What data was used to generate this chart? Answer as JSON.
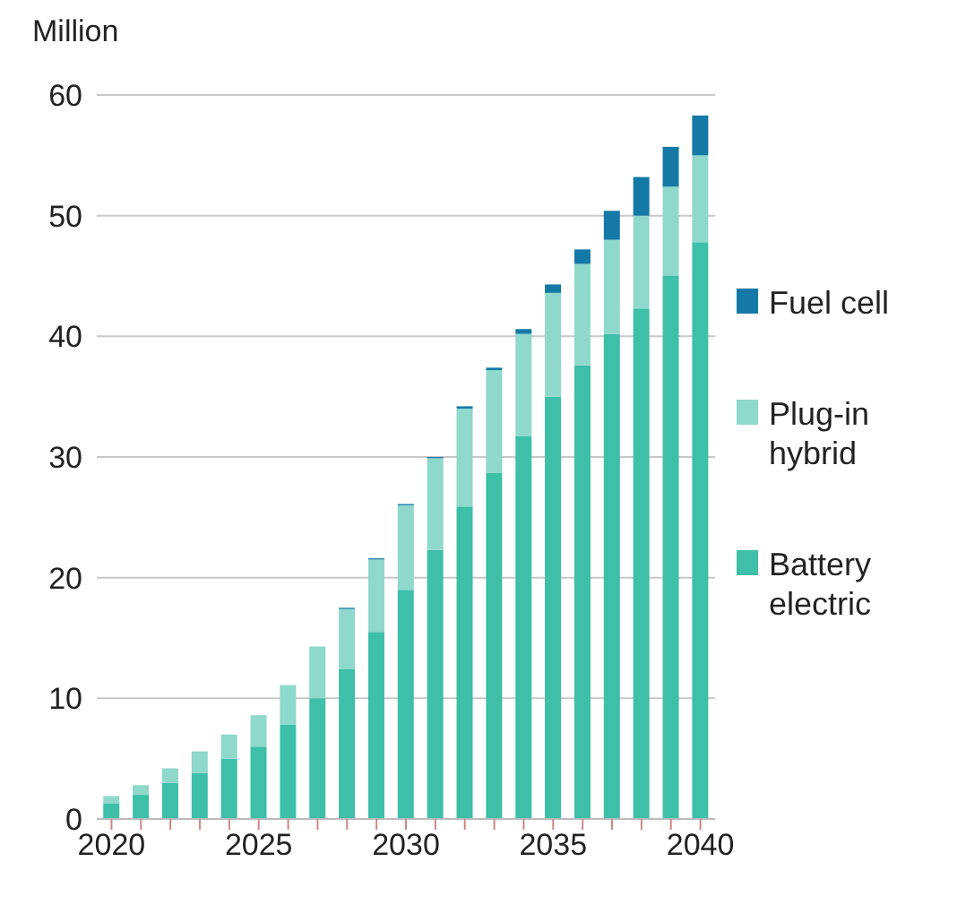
{
  "chart_data": {
    "type": "bar",
    "stacked": true,
    "ylabel": "Million",
    "categories": [
      "2020",
      null,
      null,
      null,
      null,
      "2025",
      null,
      null,
      null,
      null,
      "2030",
      null,
      null,
      null,
      null,
      "2035",
      null,
      null,
      null,
      null,
      "2040"
    ],
    "series": [
      {
        "name": "Battery electric",
        "color": "#3dbfa8",
        "values": [
          1.3,
          2.0,
          3.0,
          3.8,
          5.0,
          6.0,
          7.8,
          10.0,
          12.4,
          15.5,
          19.0,
          22.3,
          25.9,
          28.7,
          31.7,
          35.0,
          37.6,
          40.2,
          42.3,
          45.0,
          47.8
        ]
      },
      {
        "name": "Plug-in hybrid",
        "color": "#8fd8cc",
        "values": [
          0.6,
          0.8,
          1.2,
          1.8,
          2.0,
          2.6,
          3.3,
          4.3,
          5.0,
          6.0,
          7.0,
          7.6,
          8.1,
          8.5,
          8.5,
          8.6,
          8.4,
          7.8,
          7.7,
          7.4,
          7.2
        ]
      },
      {
        "name": "Fuel cell",
        "color": "#1479a6",
        "values": [
          0,
          0,
          0,
          0,
          0,
          0,
          0,
          0,
          0.1,
          0.1,
          0.1,
          0.1,
          0.2,
          0.2,
          0.4,
          0.7,
          1.2,
          2.4,
          3.2,
          3.3,
          3.3
        ]
      }
    ],
    "ylim": [
      0,
      60
    ],
    "yticks": [
      0,
      10,
      20,
      30,
      40,
      50,
      60
    ],
    "grid": "y",
    "legend": "right"
  }
}
